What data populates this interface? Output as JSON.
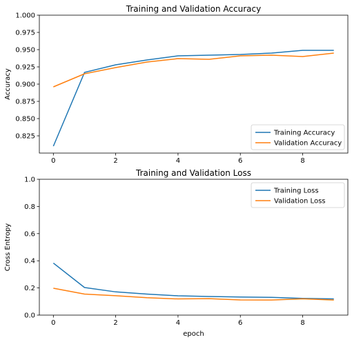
{
  "chart_data": [
    {
      "type": "line",
      "title": "Training and Validation Accuracy",
      "xlabel": "",
      "ylabel": "Accuracy",
      "xlim": [
        -0.45,
        9.45
      ],
      "ylim": [
        0.8,
        1.0
      ],
      "xticks": [
        0,
        2,
        4,
        6,
        8
      ],
      "yticks": [
        0.825,
        0.85,
        0.875,
        0.9,
        0.925,
        0.95,
        0.975,
        1.0
      ],
      "ytick_labels": [
        "0.825",
        "0.850",
        "0.875",
        "0.900",
        "0.925",
        "0.950",
        "0.975",
        "1.000"
      ],
      "legend_position": "lower-right",
      "grid": false,
      "x": [
        0,
        1,
        2,
        3,
        4,
        5,
        6,
        7,
        8,
        9
      ],
      "series": [
        {
          "name": "Training Accuracy",
          "color": "#1f77b4",
          "values": [
            0.81,
            0.917,
            0.928,
            0.935,
            0.941,
            0.942,
            0.943,
            0.945,
            0.949,
            0.949
          ]
        },
        {
          "name": "Validation Accuracy",
          "color": "#ff7f0e",
          "values": [
            0.896,
            0.915,
            0.924,
            0.932,
            0.937,
            0.936,
            0.941,
            0.942,
            0.94,
            0.945
          ]
        }
      ]
    },
    {
      "type": "line",
      "title": "Training and Validation Loss",
      "xlabel": "epoch",
      "ylabel": "Cross Entropy",
      "xlim": [
        -0.45,
        9.45
      ],
      "ylim": [
        0.0,
        1.0
      ],
      "xticks": [
        0,
        2,
        4,
        6,
        8
      ],
      "yticks": [
        0.0,
        0.2,
        0.4,
        0.6,
        0.8,
        1.0
      ],
      "ytick_labels": [
        "0.0",
        "0.2",
        "0.4",
        "0.6",
        "0.8",
        "1.0"
      ],
      "legend_position": "upper-right",
      "grid": false,
      "x": [
        0,
        1,
        2,
        3,
        4,
        5,
        6,
        7,
        8,
        9
      ],
      "series": [
        {
          "name": "Training Loss",
          "color": "#1f77b4",
          "values": [
            0.383,
            0.203,
            0.171,
            0.155,
            0.142,
            0.137,
            0.133,
            0.131,
            0.123,
            0.119
          ]
        },
        {
          "name": "Validation Loss",
          "color": "#ff7f0e",
          "values": [
            0.198,
            0.155,
            0.143,
            0.128,
            0.119,
            0.121,
            0.112,
            0.111,
            0.12,
            0.111
          ]
        }
      ]
    }
  ]
}
